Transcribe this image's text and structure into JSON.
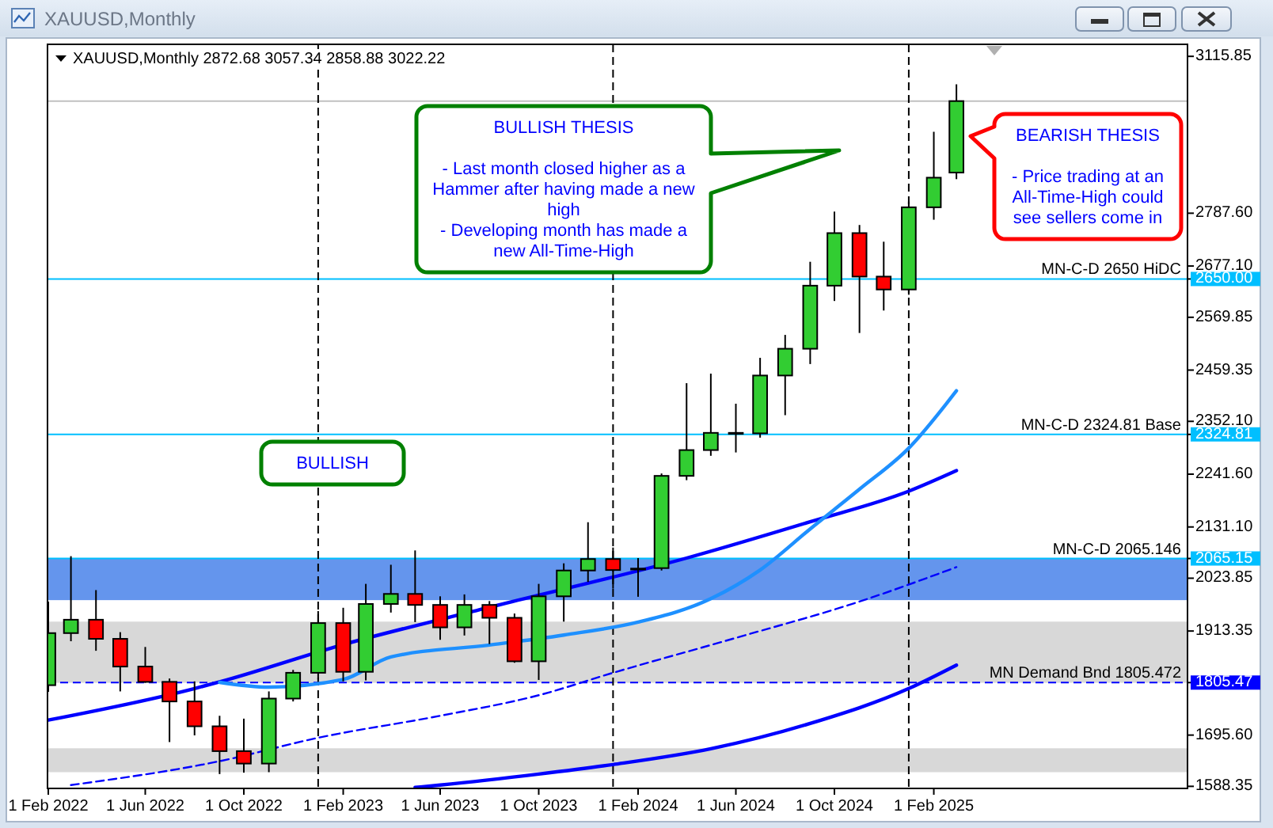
{
  "chart_data": {
    "type": "candlestick",
    "title": "XAUUSD,Monthly",
    "subtitle": "XAUUSD,Monthly 2872.68 3057.34 2858.88 3022.22",
    "x": [
      "2022-02",
      "2022-03",
      "2022-04",
      "2022-05",
      "2022-06",
      "2022-07",
      "2022-08",
      "2022-09",
      "2022-10",
      "2022-11",
      "2022-12",
      "2023-01",
      "2023-02",
      "2023-03",
      "2023-04",
      "2023-05",
      "2023-06",
      "2023-07",
      "2023-08",
      "2023-09",
      "2023-10",
      "2023-11",
      "2023-12",
      "2024-01",
      "2024-02",
      "2024-03",
      "2024-04",
      "2024-05",
      "2024-06",
      "2024-07",
      "2024-08",
      "2024-09",
      "2024-10",
      "2024-11",
      "2024-12",
      "2025-01",
      "2025-02",
      "2025-03"
    ],
    "ohlc": [
      [
        1800,
        1975,
        1786,
        1909
      ],
      [
        1909,
        2070,
        1892,
        1937
      ],
      [
        1937,
        1999,
        1872,
        1897
      ],
      [
        1897,
        1911,
        1787,
        1839
      ],
      [
        1839,
        1880,
        1805,
        1807
      ],
      [
        1807,
        1814,
        1681,
        1766
      ],
      [
        1766,
        1808,
        1695,
        1714
      ],
      [
        1714,
        1736,
        1614,
        1662
      ],
      [
        1662,
        1730,
        1617,
        1636
      ],
      [
        1636,
        1787,
        1618,
        1772
      ],
      [
        1772,
        1832,
        1766,
        1826
      ],
      [
        1826,
        1955,
        1812,
        1930
      ],
      [
        1930,
        1962,
        1808,
        1828
      ],
      [
        1828,
        2012,
        1810,
        1970
      ],
      [
        1970,
        2052,
        1952,
        1991
      ],
      [
        1991,
        2082,
        1932,
        1968
      ],
      [
        1968,
        1986,
        1895,
        1921
      ],
      [
        1921,
        1990,
        1904,
        1968
      ],
      [
        1968,
        1976,
        1886,
        1941
      ],
      [
        1941,
        1950,
        1847,
        1850
      ],
      [
        1850,
        2012,
        1811,
        1986
      ],
      [
        1986,
        2055,
        1933,
        2040
      ],
      [
        2040,
        2141,
        2016,
        2064
      ],
      [
        2064,
        2088,
        2002,
        2041
      ],
      [
        2042,
        2066,
        1985,
        2044
      ],
      [
        2045,
        2243,
        2040,
        2238
      ],
      [
        2238,
        2432,
        2229,
        2292
      ],
      [
        2292,
        2452,
        2280,
        2328
      ],
      [
        2328,
        2389,
        2287,
        2327
      ],
      [
        2327,
        2485,
        2318,
        2448
      ],
      [
        2448,
        2533,
        2365,
        2504
      ],
      [
        2504,
        2686,
        2472,
        2636
      ],
      [
        2636,
        2791,
        2604,
        2746
      ],
      [
        2746,
        2763,
        2537,
        2655
      ],
      [
        2655,
        2728,
        2584,
        2628
      ],
      [
        2628,
        2812,
        2617,
        2800
      ],
      [
        2800,
        2958,
        2774,
        2862
      ],
      [
        2872.68,
        3057.34,
        2858.88,
        3022.22
      ]
    ],
    "colors": [
      "#32cd32",
      "#32cd32",
      "#ff0000",
      "#ff0000",
      "#ff0000",
      "#ff0000",
      "#ff0000",
      "#ff0000",
      "#ff0000",
      "#32cd32",
      "#32cd32",
      "#32cd32",
      "#ff0000",
      "#32cd32",
      "#32cd32",
      "#ff0000",
      "#ff0000",
      "#32cd32",
      "#ff0000",
      "#ff0000",
      "#32cd32",
      "#32cd32",
      "#32cd32",
      "#ff0000",
      "#32cd32",
      "#32cd32",
      "#32cd32",
      "#32cd32",
      "#ff0000",
      "#32cd32",
      "#32cd32",
      "#32cd32",
      "#32cd32",
      "#ff0000",
      "#ff0000",
      "#32cd32",
      "#32cd32",
      "#32cd32"
    ],
    "series": [
      {
        "type": "line",
        "color": "#0000ff",
        "x": [
          "2022-02",
          "2022-08",
          "2022-09",
          "2023-02",
          "2023-08",
          "2024-04",
          "2024-09",
          "2025-01",
          "2025-03"
        ],
        "values": [
          1727,
          1793,
          1807,
          1885,
          1963,
          2066,
          2142,
          2206,
          2249
        ]
      },
      {
        "type": "line",
        "color": "#1e90ff",
        "x": [
          "2022-09",
          "2022-11",
          "2023-02",
          "2023-04",
          "2023-08",
          "2023-11",
          "2024-02",
          "2024-05",
          "2024-07",
          "2024-09",
          "2024-11",
          "2025-01",
          "2025-03"
        ],
        "values": [
          1806,
          1796,
          1812,
          1859,
          1884,
          1905,
          1932,
          1981,
          2041,
          2127,
          2210,
          2296,
          2416
        ]
      },
      {
        "type": "line",
        "color": "#0000ff",
        "line_style": "dashed",
        "x": [
          "2022-03",
          "2022-09",
          "2023-01",
          "2023-06",
          "2023-10",
          "2024-01",
          "2024-06",
          "2024-11",
          "2025-03"
        ],
        "values": [
          1591,
          1641,
          1690,
          1736,
          1779,
          1826,
          1899,
          1975,
          2047
        ]
      },
      {
        "type": "line",
        "color": "#0000ff",
        "x": [
          "2023-05",
          "2023-06",
          "2023-10",
          "2024-01",
          "2024-05",
          "2024-09",
          "2025-01",
          "2025-03"
        ],
        "values": [
          1586,
          1591,
          1614,
          1634,
          1667,
          1720,
          1793,
          1842
        ]
      }
    ],
    "xlim": [
      "2022-01-31",
      "2025-12-12"
    ],
    "xticks": [
      {
        "value": "2022-02-01",
        "label": "1 Feb 2022"
      },
      {
        "value": "2022-06-01",
        "label": "1 Jun 2022"
      },
      {
        "value": "2022-10-01",
        "label": "1 Oct 2022"
      },
      {
        "value": "2023-02-01",
        "label": "1 Feb 2023"
      },
      {
        "value": "2023-06-01",
        "label": "1 Jun 2023"
      },
      {
        "value": "2023-10-01",
        "label": "1 Oct 2023"
      },
      {
        "value": "2024-02-01",
        "label": "1 Feb 2024"
      },
      {
        "value": "2024-06-01",
        "label": "1 Jun 2024"
      },
      {
        "value": "2024-10-01",
        "label": "1 Oct 2024"
      },
      {
        "value": "2025-02-01",
        "label": "1 Feb 2025"
      }
    ],
    "ylim": [
      1584,
      3141
    ],
    "yticks": [
      3115.85,
      {
        "value": 2787.6,
        "label": "2787.60"
      },
      {
        "value": 2677.1,
        "label": "2677.10"
      },
      {
        "value": 2650,
        "label": "2650.00"
      },
      2569.85,
      2459.35,
      {
        "value": 2352.1,
        "label": "2352.10"
      },
      2324.81,
      {
        "value": 2241.6,
        "label": "2241.60"
      },
      {
        "value": 2131.1,
        "label": "2131.10"
      },
      {
        "value": 2065.146,
        "label": "2065.15"
      },
      2023.85,
      1913.35,
      {
        "value": 1805.472,
        "label": "1805.47"
      },
      {
        "value": 1695.6,
        "label": "1695.60"
      },
      1588.35
    ],
    "bands": [
      {
        "axis": "y",
        "from": 1978,
        "to": 2065,
        "color": "#6495ed"
      },
      {
        "axis": "y",
        "from": 1805,
        "to": 1933,
        "color": "#d8d8d8"
      },
      {
        "axis": "y",
        "from": 1618,
        "to": 1668,
        "color": "#d8d8d8"
      }
    ],
    "ref_lines": [
      {
        "axis": "y",
        "value": 2650,
        "label": "MN-C-D 2650 HiDC",
        "color": "#00bfff"
      },
      {
        "axis": "y",
        "value": 2324.81,
        "label": "MN-C-D 2324.81 Base",
        "color": "#00bfff"
      },
      {
        "axis": "y",
        "value": 2065.146,
        "label": "MN-C-D 2065.146",
        "color": "#00bfff"
      },
      {
        "axis": "y",
        "value": 1805.472,
        "label": "MN Demand Bnd 1805.472",
        "color": "#0000ff",
        "line_style": "dashed"
      },
      {
        "axis": "y",
        "value": 3022.22,
        "color": "#c0c0c0"
      },
      {
        "axis": "x",
        "value": "2023-01",
        "color": "#000000",
        "line_style": "dashed"
      },
      {
        "axis": "x",
        "value": "2024-01",
        "color": "#000000",
        "line_style": "dashed"
      },
      {
        "axis": "x",
        "value": "2025-01",
        "color": "#000000",
        "line_style": "dashed"
      }
    ],
    "annotations": [
      "BULLISH THESIS\n\n- Last month closed higher as a Hammer after having made a new high\n- Developing month has made a new All-Time-High",
      "BEARISH THESIS\n\n- Price trading at an All-Time-High could see sellers come in",
      "BULLISH"
    ]
  }
}
